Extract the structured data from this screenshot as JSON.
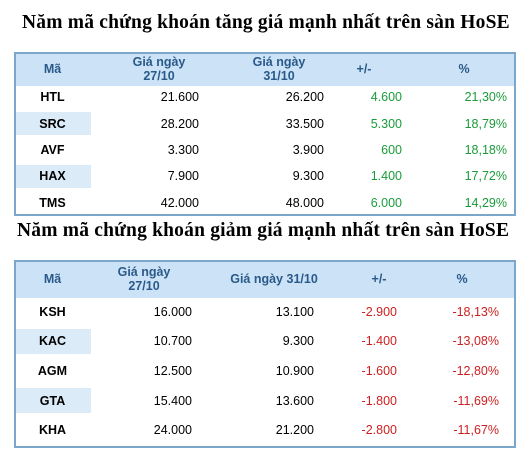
{
  "title_up": "Năm mã chứng khoán tăng giá mạnh nhất trên sàn HoSE",
  "title_down": "Năm mã chứng khoán giảm giá mạnh nhất trên sàn HoSE",
  "colors": {
    "header_bg": "#cce3f7",
    "header_text": "#2a5a8a",
    "border": "#7aa7cb",
    "positive": "#1a9b3a",
    "negative": "#cc1f1f"
  },
  "table_up": {
    "headers": {
      "code": "Mã",
      "price1_line1": "Giá ngày",
      "price1_line2": "27/10",
      "price2_line1": "Giá ngày",
      "price2_line2": "31/10",
      "change": "+/-",
      "pct": "%"
    },
    "rows": [
      {
        "code": "HTL",
        "p1": "21.600",
        "p2": "26.200",
        "change": "4.600",
        "pct": "21,30%"
      },
      {
        "code": "SRC",
        "p1": "28.200",
        "p2": "33.500",
        "change": "5.300",
        "pct": "18,79%"
      },
      {
        "code": "AVF",
        "p1": "3.300",
        "p2": "3.900",
        "change": "600",
        "pct": "18,18%"
      },
      {
        "code": "HAX",
        "p1": "7.900",
        "p2": "9.300",
        "change": "1.400",
        "pct": "17,72%"
      },
      {
        "code": "TMS",
        "p1": "42.000",
        "p2": "48.000",
        "change": "6.000",
        "pct": "14,29%"
      }
    ]
  },
  "table_down": {
    "headers": {
      "code": "Mã",
      "price1_line1": "Giá ngày",
      "price1_line2": "27/10",
      "price2": "Giá ngày 31/10",
      "change": "+/-",
      "pct": "%"
    },
    "rows": [
      {
        "code": "KSH",
        "p1": "16.000",
        "p2": "13.100",
        "change": "-2.900",
        "pct": "-18,13%"
      },
      {
        "code": "KAC",
        "p1": "10.700",
        "p2": "9.300",
        "change": "-1.400",
        "pct": "-13,08%"
      },
      {
        "code": "AGM",
        "p1": "12.500",
        "p2": "10.900",
        "change": "-1.600",
        "pct": "-12,80%"
      },
      {
        "code": "GTA",
        "p1": "15.400",
        "p2": "13.600",
        "change": "-1.800",
        "pct": "-11,69%"
      },
      {
        "code": "KHA",
        "p1": "24.000",
        "p2": "21.200",
        "change": "-2.800",
        "pct": "-11,67%"
      }
    ]
  }
}
